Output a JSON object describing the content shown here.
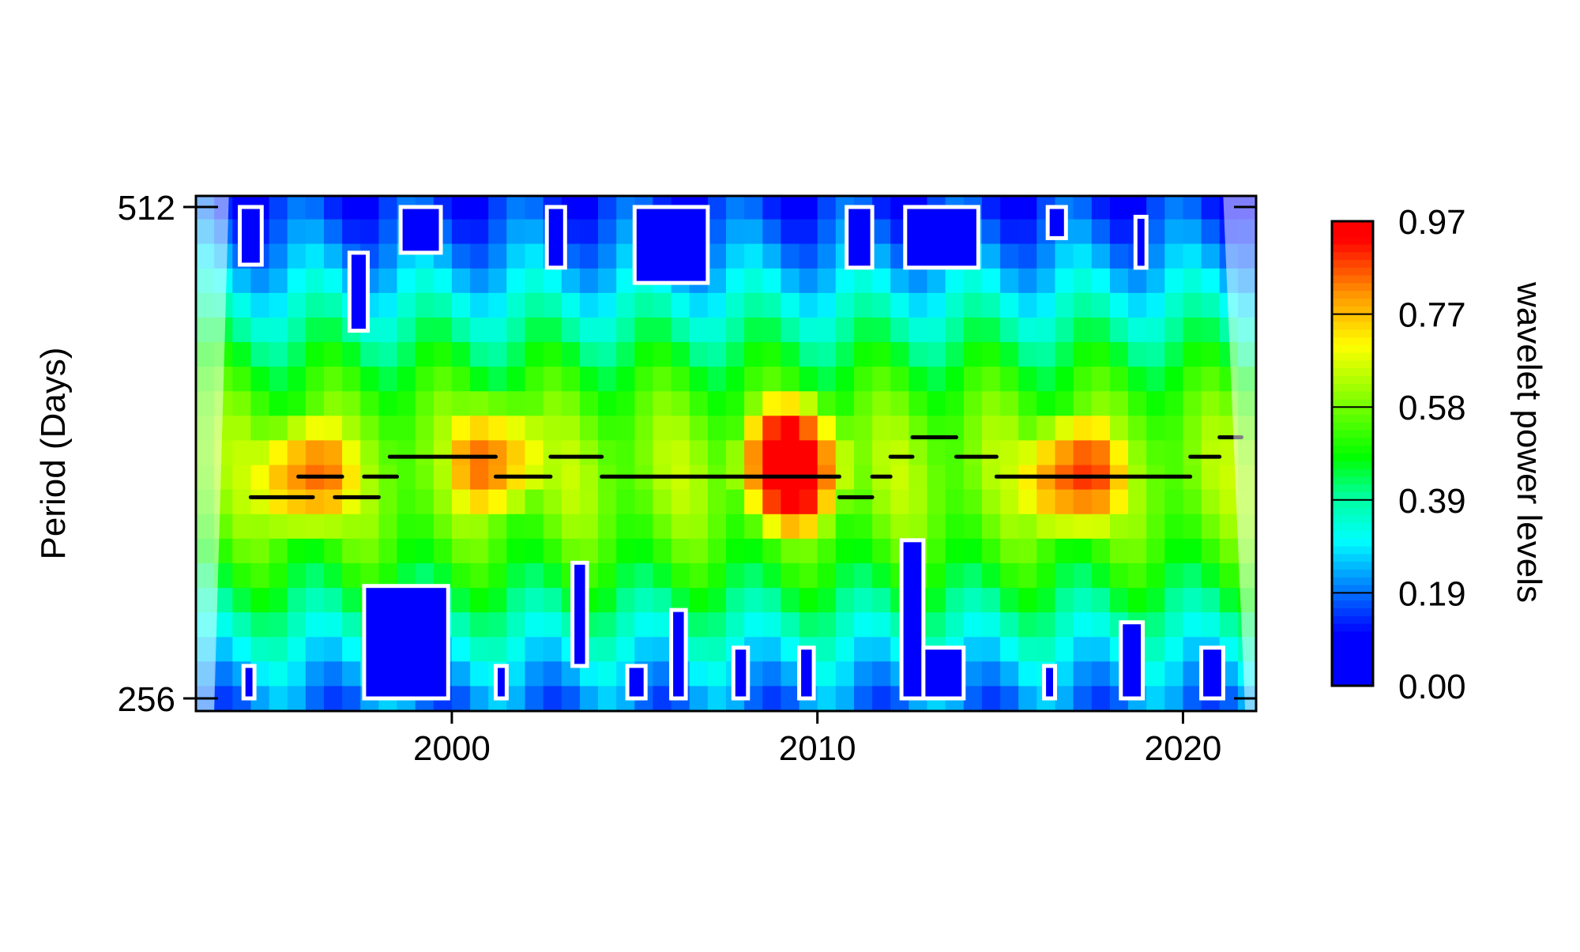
{
  "chart_data": {
    "type": "heatmap",
    "title": "",
    "xlabel": "",
    "ylabel": "Period (Days)",
    "x_ticks": [
      "2000",
      "2010",
      "2020"
    ],
    "x_tick_values": [
      2000,
      2010,
      2020
    ],
    "xlim": [
      1993,
      2022
    ],
    "y_ticks": [
      "512",
      "256"
    ],
    "y_tick_values": [
      512,
      256
    ],
    "ylim": [
      256,
      512
    ],
    "y_scale": "log2",
    "colorbar": {
      "label": "wavelet power levels",
      "ticks": [
        "0.97",
        "0.77",
        "0.58",
        "0.39",
        "0.19",
        "0.00"
      ],
      "tick_values": [
        0.97,
        0.77,
        0.58,
        0.39,
        0.19,
        0.0
      ],
      "colors": [
        "#0000ff",
        "#0080ff",
        "#00ffff",
        "#00ff80",
        "#00ff00",
        "#80ff00",
        "#ffff00",
        "#ff8000",
        "#ff0000"
      ]
    },
    "power_peaks": [
      {
        "year": 1996.0,
        "period": 350,
        "power": 0.82
      },
      {
        "year": 2001.2,
        "period": 358,
        "power": 0.8
      },
      {
        "year": 2009.3,
        "period": 355,
        "power": 0.97
      },
      {
        "year": 2017.0,
        "period": 350,
        "power": 0.86
      }
    ],
    "ridge_line": [
      {
        "x0": 1994.5,
        "x1": 1996.2,
        "period": 340
      },
      {
        "x0": 1995.8,
        "x1": 1997.0,
        "period": 350
      },
      {
        "x0": 1996.8,
        "x1": 1998.0,
        "period": 340
      },
      {
        "x0": 1997.6,
        "x1": 1998.5,
        "period": 350
      },
      {
        "x0": 1998.3,
        "x1": 2001.2,
        "period": 360
      },
      {
        "x0": 2001.2,
        "x1": 2002.7,
        "period": 350
      },
      {
        "x0": 2002.7,
        "x1": 2004.1,
        "period": 360
      },
      {
        "x0": 2004.1,
        "x1": 2010.6,
        "period": 350
      },
      {
        "x0": 2010.6,
        "x1": 2011.5,
        "period": 340
      },
      {
        "x0": 2011.5,
        "x1": 2012.0,
        "period": 350
      },
      {
        "x0": 2012.0,
        "x1": 2012.6,
        "period": 360
      },
      {
        "x0": 2012.6,
        "x1": 2013.8,
        "period": 370
      },
      {
        "x0": 2013.8,
        "x1": 2014.9,
        "period": 360
      },
      {
        "x0": 2014.9,
        "x1": 2020.2,
        "period": 350
      },
      {
        "x0": 2020.2,
        "x1": 2021.0,
        "period": 360
      },
      {
        "x0": 2021.0,
        "x1": 2021.6,
        "period": 370
      }
    ],
    "grid": false,
    "legend": "colorbar-right"
  }
}
